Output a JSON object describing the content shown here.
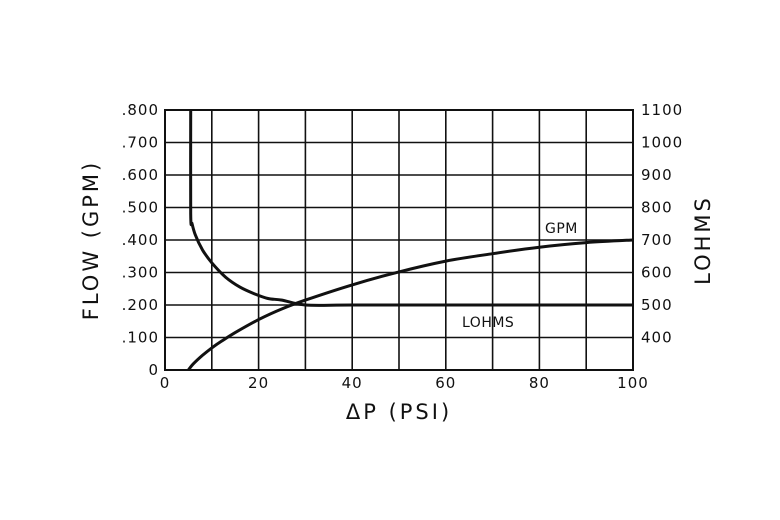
{
  "chart_data": {
    "type": "line",
    "xlabel": "ΔP (PSI)",
    "ylabel_left": "FLOW (GPM)",
    "ylabel_right": "LOHMS",
    "grid": true,
    "xlim": [
      0,
      100
    ],
    "ylim_left": [
      0,
      0.8
    ],
    "ylim_right": [
      300,
      1100
    ],
    "x_ticks": [
      0,
      20,
      40,
      60,
      80,
      100
    ],
    "x_tick_labels": [
      "0",
      "20",
      "40",
      "60",
      "80",
      "100"
    ],
    "y_left_ticks": [
      0,
      0.1,
      0.2,
      0.3,
      0.4,
      0.5,
      0.6,
      0.7,
      0.8
    ],
    "y_left_tick_labels": [
      "0",
      ".100",
      ".200",
      ".300",
      ".400",
      ".500",
      ".600",
      ".700",
      ".800"
    ],
    "y_right_ticks": [
      400,
      500,
      600,
      700,
      800,
      900,
      1000,
      1100
    ],
    "y_right_tick_labels": [
      "400",
      "500",
      "600",
      "700",
      "800",
      "900",
      "1000",
      "1100"
    ],
    "series": [
      {
        "name": "GPM",
        "axis": "left",
        "x": [
          5,
          6,
          8,
          10,
          12,
          15,
          20,
          25,
          30,
          40,
          50,
          60,
          70,
          80,
          90,
          100
        ],
        "y": [
          0.0,
          0.018,
          0.045,
          0.068,
          0.088,
          0.115,
          0.155,
          0.188,
          0.215,
          0.262,
          0.302,
          0.335,
          0.358,
          0.378,
          0.392,
          0.4
        ]
      },
      {
        "name": "LOHMS",
        "axis": "right",
        "x": [
          5.5,
          5.5,
          5.8,
          6.5,
          8,
          10,
          13,
          16,
          19,
          22,
          25,
          30,
          40,
          60,
          80,
          100
        ],
        "y": [
          1100,
          780,
          750,
          715,
          670,
          630,
          585,
          555,
          535,
          520,
          515,
          500,
          500,
          500,
          500,
          500
        ]
      }
    ]
  }
}
